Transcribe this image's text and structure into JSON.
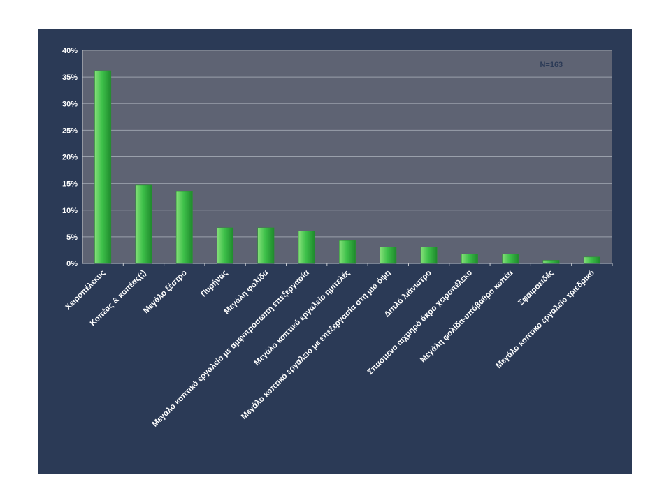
{
  "chart_data": {
    "type": "bar",
    "annotation": "N=163",
    "categories": [
      "Χειροπέλεκυς",
      "Κοπέας & κοπέας(;)",
      "Μεγάλο ξέστρο",
      "Πυρήνας",
      "Μεγάλη φολίδα",
      "Μεγάλο κοπτικό εργαλείο με αμφιπρόσωπη επεξεργασία",
      "Μεγάλο κοπτικό εργαλείο ημιτελές",
      "Μεγάλο κοπτικό εργαλείο με επεξεργασία στη μια όψη",
      "Διπλό λιάνιστρο",
      "Σπασμένο αιχμηρό άκρο χειροπέλεκυ",
      "Μεγάλη φολίδα-υπόβαθρο κοπέα",
      "Σφαιροειδές",
      "Μεγάλο κοπτικό εργαλείο τριεδρικό"
    ],
    "values": [
      36.2,
      14.7,
      13.5,
      6.7,
      6.7,
      6.1,
      4.3,
      3.1,
      3.1,
      1.8,
      1.8,
      0.6,
      1.2
    ],
    "ylim": [
      0,
      40
    ],
    "yticks": [
      "0%",
      "5%",
      "10%",
      "15%",
      "20%",
      "25%",
      "30%",
      "35%",
      "40%"
    ],
    "grid": true,
    "colors": {
      "slide_bg": "#2b3a56",
      "plot_bg": "#5e6373",
      "grid": "#9aa0ab",
      "bar_light": "#86e07a",
      "bar_mid": "#3ec14a",
      "bar_dark": "#1e8a2c"
    }
  }
}
